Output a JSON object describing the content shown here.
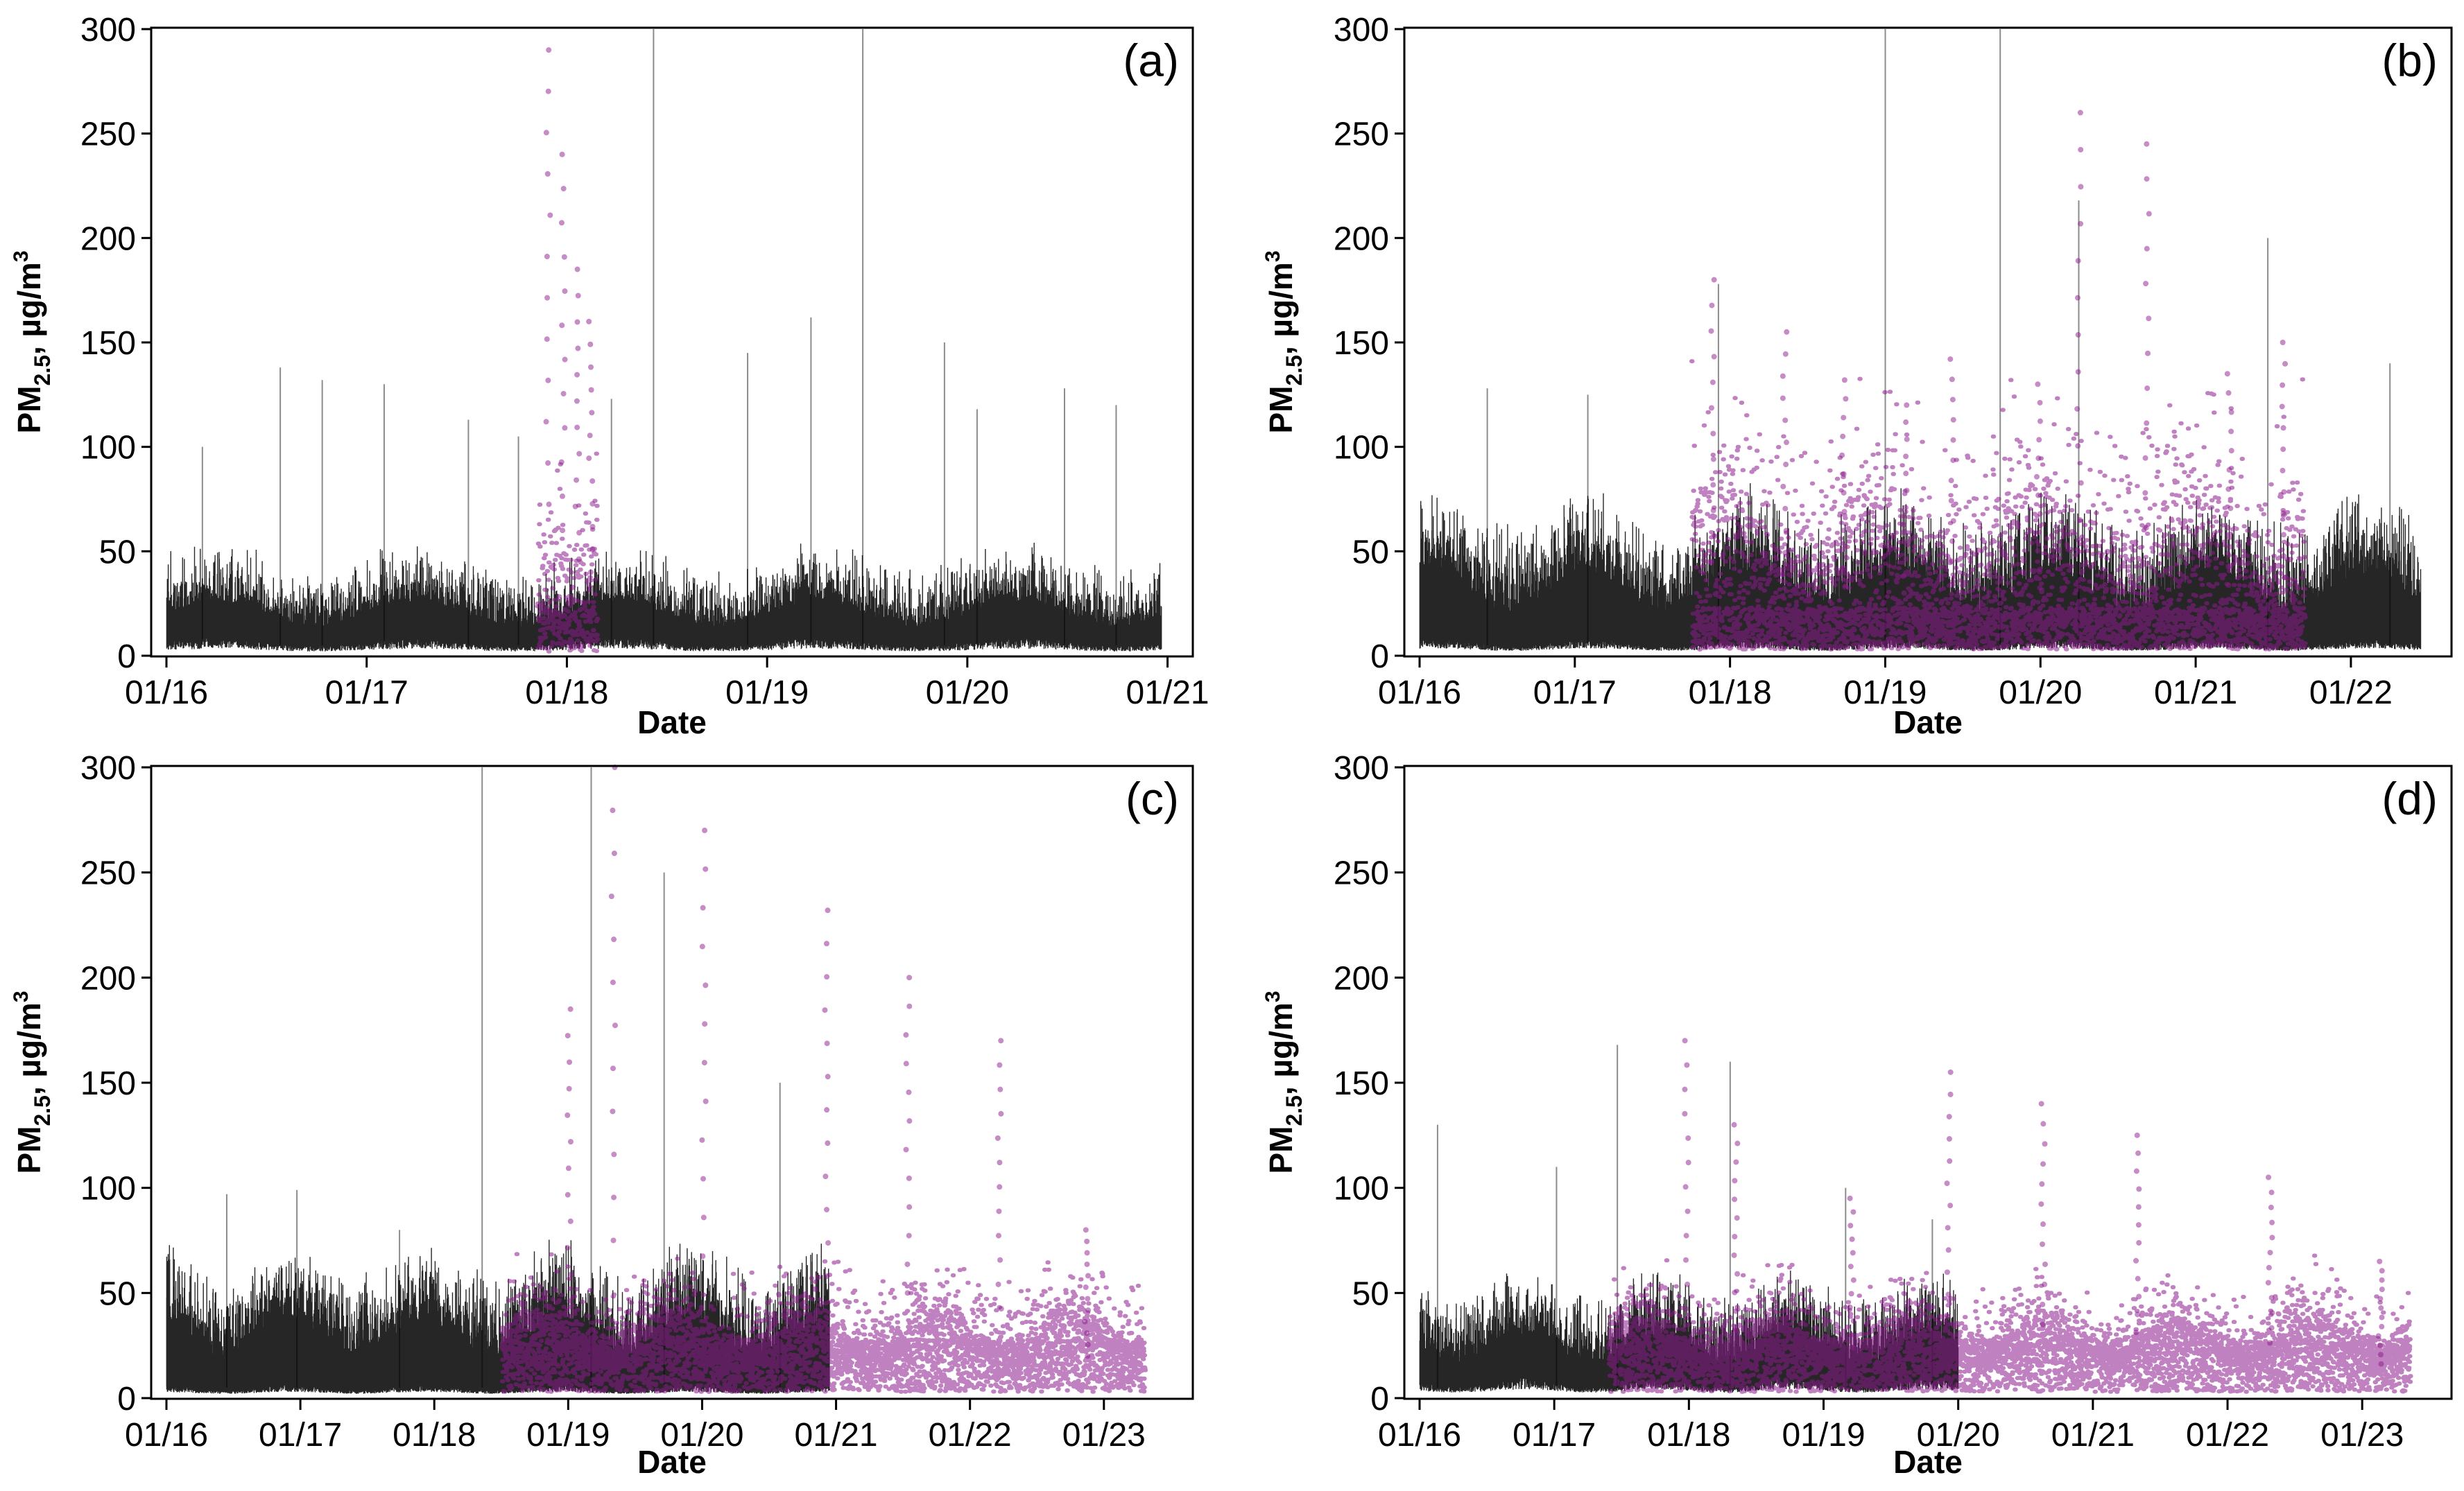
{
  "colors": {
    "background": "#ffffff",
    "series_lowcost": "#000000",
    "series_reference": "#8b1a8b",
    "frame": "#000000"
  },
  "chart_data": [
    {
      "type": "scatter",
      "panel_label": "(a)",
      "xlabel": "Date",
      "ylabel": "PM2.5, µg/m3",
      "ylabel_parts": {
        "main": "PM",
        "sub": "2.5",
        "rest": ", µg/m",
        "sup": "3"
      },
      "ylim": [
        0,
        300
      ],
      "yticks": [
        "0",
        "50",
        "100",
        "150",
        "200",
        "250",
        "300"
      ],
      "xlim": [
        0,
        5.05
      ],
      "xtick_positions": [
        0,
        1,
        2,
        3,
        4,
        5
      ],
      "xtick_labels": [
        "01/16",
        "01/17",
        "01/18",
        "01/19",
        "01/20",
        "01/21"
      ],
      "series": [
        {
          "name": "black series",
          "color": "#000000",
          "x_range": [
            0,
            4.97
          ],
          "typical_values": [
            2,
            15,
            40
          ],
          "spike_values": [
            100,
            138,
            132,
            130,
            113,
            105,
            123,
            300,
            145,
            162,
            300,
            150,
            118,
            128,
            120
          ]
        },
        {
          "name": "purple series",
          "color": "#8b1a8b",
          "x_range": [
            1.85,
            2.15
          ],
          "typical_values": [
            2,
            20,
            80
          ],
          "spike_values": [
            290,
            240,
            185,
            160
          ]
        }
      ]
    },
    {
      "type": "scatter",
      "panel_label": "(b)",
      "xlabel": "Date",
      "ylabel": "PM2.5, µg/m3",
      "ylabel_parts": {
        "main": "PM",
        "sub": "2.5",
        "rest": ", µg/m",
        "sup": "3"
      },
      "ylim": [
        0,
        300
      ],
      "yticks": [
        "0",
        "50",
        "100",
        "150",
        "200",
        "250",
        "300"
      ],
      "xlim": [
        0,
        6.55
      ],
      "xtick_positions": [
        0,
        1,
        2,
        3,
        4,
        5,
        6
      ],
      "xtick_labels": [
        "01/16",
        "01/17",
        "01/18",
        "01/19",
        "01/20",
        "01/21",
        "01/22"
      ],
      "series": [
        {
          "name": "black series",
          "color": "#000000",
          "x_range": [
            0,
            6.45
          ],
          "typical_values": [
            3,
            15,
            60
          ],
          "spike_values": [
            128,
            125,
            178,
            300,
            300,
            218,
            200,
            140
          ]
        },
        {
          "name": "purple series",
          "color": "#8b1a8b",
          "x_range": [
            1.75,
            5.7
          ],
          "typical_values": [
            3,
            20,
            120
          ],
          "spike_values": [
            180,
            155,
            132,
            120,
            142,
            130,
            260,
            245,
            135,
            150
          ]
        }
      ]
    },
    {
      "type": "scatter",
      "panel_label": "(c)",
      "xlabel": "Date",
      "ylabel": "PM2.5, µg/m3",
      "ylabel_parts": {
        "main": "PM",
        "sub": "2.5",
        "rest": ", µg/m",
        "sup": "3"
      },
      "ylim": [
        0,
        300
      ],
      "yticks": [
        "0",
        "50",
        "100",
        "150",
        "200",
        "250",
        "300"
      ],
      "xlim": [
        0,
        7.55
      ],
      "xtick_positions": [
        0,
        1,
        2,
        3,
        4,
        5,
        6,
        7
      ],
      "xtick_labels": [
        "01/16",
        "01/17",
        "01/18",
        "01/19",
        "01/20",
        "01/21",
        "01/22",
        "01/23"
      ],
      "series": [
        {
          "name": "black series",
          "color": "#000000",
          "x_range": [
            0,
            4.95
          ],
          "typical_values": [
            3,
            12,
            55
          ],
          "spike_values": [
            97,
            99,
            80,
            300,
            300,
            250,
            150
          ]
        },
        {
          "name": "purple series",
          "color": "#8b1a8b",
          "x_range": [
            2.5,
            7.3
          ],
          "typical_values": [
            3,
            25,
            60
          ],
          "spike_values": [
            185,
            300,
            270,
            232,
            200,
            170,
            80
          ]
        }
      ]
    },
    {
      "type": "scatter",
      "panel_label": "(d)",
      "xlabel": "Date",
      "ylabel": "PM2.5, µg/m3",
      "ylabel_parts": {
        "main": "PM",
        "sub": "2.5",
        "rest": ", µg/m",
        "sup": "3"
      },
      "ylim": [
        0,
        300
      ],
      "yticks": [
        "0",
        "50",
        "100",
        "150",
        "200",
        "250",
        "300"
      ],
      "xlim": [
        0,
        7.55
      ],
      "xtick_positions": [
        0,
        1,
        2,
        3,
        4,
        5,
        6,
        7
      ],
      "xtick_labels": [
        "01/16",
        "01/17",
        "01/18",
        "01/19",
        "01/20",
        "01/21",
        "01/22",
        "01/23"
      ],
      "series": [
        {
          "name": "black series",
          "color": "#000000",
          "x_range": [
            0,
            4.0
          ],
          "typical_values": [
            3,
            18,
            45
          ],
          "spike_values": [
            130,
            110,
            168,
            160,
            100,
            85
          ]
        },
        {
          "name": "purple series",
          "color": "#8b1a8b",
          "x_range": [
            1.4,
            7.35
          ],
          "typical_values": [
            3,
            25,
            55
          ],
          "spike_values": [
            170,
            130,
            95,
            155,
            140,
            125,
            105,
            65
          ]
        }
      ]
    }
  ]
}
